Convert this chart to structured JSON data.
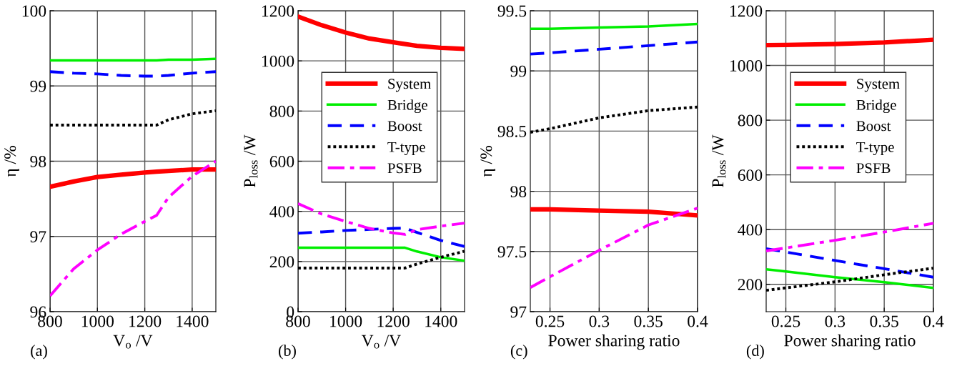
{
  "chart_data": [
    {
      "type": "line",
      "xlabel": "V$_{o}$ /V",
      "ylabel": "η /%",
      "annotations": [
        "(a)"
      ],
      "grid": true,
      "x": [
        800,
        900,
        1000,
        1100,
        1200,
        1250,
        1300,
        1400,
        1500
      ],
      "xlim": [
        800,
        1500
      ],
      "ylim": [
        96,
        100
      ],
      "xticks": [
        800,
        1000,
        1200,
        1400
      ],
      "yticks": [
        96,
        97,
        98,
        99,
        100
      ],
      "series": [
        {
          "color": "#ff0000",
          "line_style": "solid",
          "values": [
            97.66,
            97.73,
            97.79,
            97.82,
            97.85,
            97.86,
            97.87,
            97.89,
            97.89
          ]
        },
        {
          "color": "#00ee00",
          "line_style": "solid",
          "values": [
            99.34,
            99.34,
            99.34,
            99.34,
            99.34,
            99.34,
            99.35,
            99.35,
            99.36
          ]
        },
        {
          "color": "#0000ff",
          "line_style": "dashed",
          "values": [
            99.19,
            99.17,
            99.16,
            99.14,
            99.13,
            99.13,
            99.14,
            99.17,
            99.19
          ]
        },
        {
          "color": "#000000",
          "line_style": "dotted",
          "values": [
            98.48,
            98.48,
            98.48,
            98.48,
            98.48,
            98.48,
            98.55,
            98.63,
            98.67
          ]
        },
        {
          "color": "#ff00ff",
          "line_style": "dashdot",
          "values": [
            96.21,
            96.57,
            96.82,
            97.03,
            97.2,
            97.28,
            97.52,
            97.8,
            98.0
          ]
        }
      ]
    },
    {
      "type": "line",
      "xlabel": "V$_{o}$ /V",
      "ylabel": "P$_{loss}$ /W",
      "annotations": [
        "(b)"
      ],
      "grid": true,
      "legend": "upper right",
      "x": [
        800,
        900,
        1000,
        1100,
        1200,
        1250,
        1300,
        1400,
        1500
      ],
      "xlim": [
        800,
        1500
      ],
      "ylim": [
        0,
        1200
      ],
      "xticks": [
        800,
        1000,
        1200,
        1400
      ],
      "yticks": [
        0,
        200,
        400,
        600,
        800,
        1000,
        1200
      ],
      "series": [
        {
          "name": "System",
          "color": "#ff0000",
          "line_style": "solid",
          "values": [
            1177,
            1142,
            1113,
            1089,
            1074,
            1067,
            1060,
            1052,
            1048
          ]
        },
        {
          "name": "Bridge",
          "color": "#00ee00",
          "line_style": "solid",
          "values": [
            255,
            255,
            255,
            255,
            255,
            255,
            240,
            217,
            203
          ]
        },
        {
          "name": "Boost",
          "color": "#0000ff",
          "line_style": "dashed",
          "values": [
            313,
            318,
            324,
            328,
            332,
            333,
            316,
            284,
            260
          ]
        },
        {
          "name": "T-type",
          "color": "#000000",
          "line_style": "dotted",
          "values": [
            174,
            174,
            174,
            174,
            174,
            174,
            190,
            217,
            241
          ]
        },
        {
          "name": "PSFB",
          "color": "#ff00ff",
          "line_style": "dashdot",
          "values": [
            431,
            389,
            360,
            332,
            314,
            308,
            327,
            341,
            353
          ]
        }
      ]
    },
    {
      "type": "line",
      "xlabel": "Power sharing ratio",
      "ylabel": "η /%",
      "annotations": [
        "(c)"
      ],
      "grid": true,
      "x": [
        0.23,
        0.25,
        0.3,
        0.35,
        0.4
      ],
      "xlim": [
        0.23,
        0.4
      ],
      "ylim": [
        97,
        99.5
      ],
      "xticks": [
        0.25,
        0.3,
        0.35,
        0.4
      ],
      "yticks": [
        97,
        97.5,
        98,
        98.5,
        99,
        99.5
      ],
      "series": [
        {
          "color": "#ff0000",
          "line_style": "solid",
          "values": [
            97.85,
            97.85,
            97.84,
            97.83,
            97.8
          ]
        },
        {
          "color": "#00ee00",
          "line_style": "solid",
          "values": [
            99.35,
            99.35,
            99.36,
            99.37,
            99.39
          ]
        },
        {
          "color": "#0000ff",
          "line_style": "dashed",
          "values": [
            99.14,
            99.15,
            99.18,
            99.21,
            99.24
          ]
        },
        {
          "color": "#000000",
          "line_style": "dotted",
          "values": [
            98.49,
            98.52,
            98.61,
            98.67,
            98.7
          ]
        },
        {
          "color": "#ff00ff",
          "line_style": "dashdot",
          "values": [
            97.2,
            97.29,
            97.51,
            97.72,
            97.86
          ]
        }
      ]
    },
    {
      "type": "line",
      "xlabel": "Power sharing ratio",
      "ylabel": "P$_{loss}$ /W",
      "annotations": [
        "(d)"
      ],
      "grid": true,
      "legend": "upper right",
      "x": [
        0.23,
        0.25,
        0.3,
        0.35,
        0.4
      ],
      "xlim": [
        0.23,
        0.4
      ],
      "ylim": [
        100,
        1200
      ],
      "xticks": [
        0.25,
        0.3,
        0.35,
        0.4
      ],
      "yticks": [
        200,
        400,
        600,
        800,
        1000,
        1200
      ],
      "series": [
        {
          "name": "System",
          "color": "#ff0000",
          "line_style": "solid",
          "values": [
            1074,
            1075,
            1078,
            1084,
            1094
          ]
        },
        {
          "name": "Bridge",
          "color": "#00ee00",
          "line_style": "solid",
          "values": [
            255,
            247,
            226,
            208,
            187
          ]
        },
        {
          "name": "Boost",
          "color": "#0000ff",
          "line_style": "dashed",
          "values": [
            330,
            318,
            287,
            257,
            226
          ]
        },
        {
          "name": "T-type",
          "color": "#000000",
          "line_style": "dotted",
          "values": [
            178,
            187,
            209,
            235,
            259
          ]
        },
        {
          "name": "PSFB",
          "color": "#ff00ff",
          "line_style": "dashdot",
          "values": [
            322,
            333,
            361,
            391,
            423
          ]
        }
      ]
    }
  ]
}
